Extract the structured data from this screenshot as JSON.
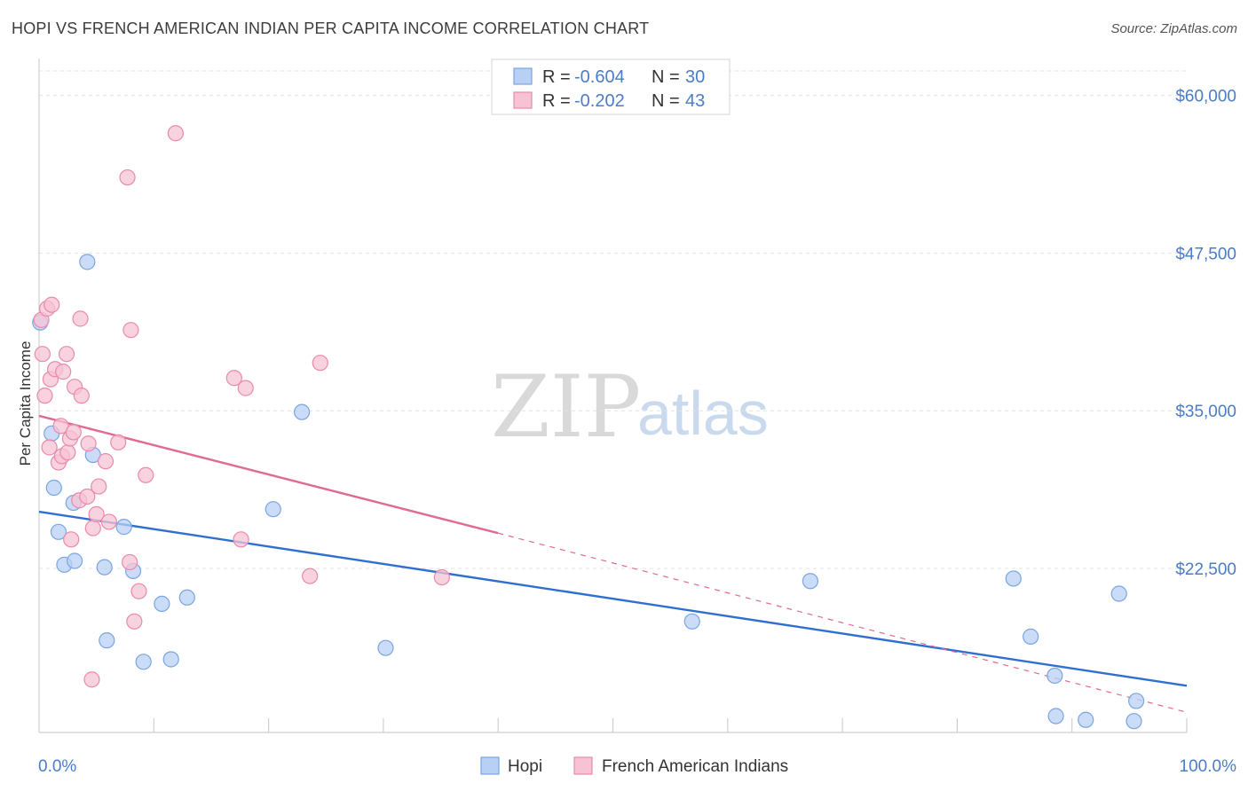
{
  "header": {
    "title": "HOPI VS FRENCH AMERICAN INDIAN PER CAPITA INCOME CORRELATION CHART",
    "source": "Source: ZipAtlas.com"
  },
  "watermark": {
    "part1": "ZIP",
    "part2": "atlas"
  },
  "colors": {
    "hopi_fill": "#b8d0f4",
    "hopi_stroke": "#7aa5df",
    "hopi_line": "#2f6fd0",
    "french_fill": "#f7c3d4",
    "french_stroke": "#e98aaa",
    "french_line": "#e06a93",
    "grid": "#e3e3e3",
    "axis_text": "#4a7cc7"
  },
  "legend": {
    "rows": [
      {
        "r_label": "R = ",
        "r_value": "-0.604",
        "n_label": "N = ",
        "n_value": "30"
      },
      {
        "r_label": "R = ",
        "r_value": "-0.202",
        "n_label": "N = ",
        "n_value": "43"
      }
    ]
  },
  "bottom_legend": {
    "hopi": "Hopi",
    "french": "French American Indians"
  },
  "chart_data": {
    "type": "scatter",
    "ylabel": "Per Capita Income",
    "xlim": [
      0,
      100
    ],
    "ylim": [
      9500,
      62500
    ],
    "y_ticks": [
      {
        "value": 22500,
        "label": "$22,500"
      },
      {
        "value": 35000,
        "label": "$35,000"
      },
      {
        "value": 47500,
        "label": "$47,500"
      },
      {
        "value": 60000,
        "label": "$60,000"
      }
    ],
    "x_tick_labels": {
      "min": "0.0%",
      "max": "100.0%"
    },
    "grid": "horizontal dashed",
    "series": [
      {
        "name": "Hopi",
        "points": [
          [
            0.1,
            42000
          ],
          [
            1.1,
            33200
          ],
          [
            1.3,
            28900
          ],
          [
            1.7,
            25400
          ],
          [
            2.2,
            22800
          ],
          [
            3.0,
            27700
          ],
          [
            3.1,
            23100
          ],
          [
            4.2,
            46800
          ],
          [
            4.7,
            31500
          ],
          [
            5.7,
            22600
          ],
          [
            5.9,
            16800
          ],
          [
            7.4,
            25800
          ],
          [
            8.2,
            22300
          ],
          [
            9.1,
            15100
          ],
          [
            10.7,
            19700
          ],
          [
            11.5,
            15300
          ],
          [
            12.9,
            20200
          ],
          [
            20.4,
            27200
          ],
          [
            22.9,
            34900
          ],
          [
            30.2,
            16200
          ],
          [
            56.9,
            18300
          ],
          [
            67.2,
            21500
          ],
          [
            84.9,
            21700
          ],
          [
            86.4,
            17100
          ],
          [
            88.5,
            14000
          ],
          [
            88.6,
            10800
          ],
          [
            91.2,
            10500
          ],
          [
            94.1,
            20500
          ],
          [
            95.4,
            10400
          ],
          [
            95.6,
            12000
          ]
        ],
        "trend": {
          "x1": 0,
          "y1": 27000,
          "x2": 100,
          "y2": 13200
        }
      },
      {
        "name": "French American Indians",
        "points": [
          [
            0.2,
            42200
          ],
          [
            0.3,
            39500
          ],
          [
            0.5,
            36200
          ],
          [
            0.7,
            43100
          ],
          [
            0.9,
            32100
          ],
          [
            1.0,
            37500
          ],
          [
            1.1,
            43400
          ],
          [
            1.4,
            38300
          ],
          [
            1.7,
            30900
          ],
          [
            1.9,
            33800
          ],
          [
            2.0,
            31400
          ],
          [
            2.1,
            38100
          ],
          [
            2.4,
            39500
          ],
          [
            2.5,
            31700
          ],
          [
            2.7,
            32800
          ],
          [
            2.8,
            24800
          ],
          [
            3.0,
            33300
          ],
          [
            3.1,
            36900
          ],
          [
            3.5,
            27900
          ],
          [
            3.6,
            42300
          ],
          [
            3.7,
            36200
          ],
          [
            4.2,
            28200
          ],
          [
            4.3,
            32400
          ],
          [
            4.6,
            13700
          ],
          [
            4.7,
            25700
          ],
          [
            5.0,
            26800
          ],
          [
            5.2,
            29000
          ],
          [
            5.8,
            31000
          ],
          [
            6.1,
            26200
          ],
          [
            6.9,
            32500
          ],
          [
            7.7,
            53500
          ],
          [
            7.9,
            23000
          ],
          [
            8.0,
            41400
          ],
          [
            8.3,
            18300
          ],
          [
            8.7,
            20700
          ],
          [
            9.3,
            29900
          ],
          [
            11.9,
            57000
          ],
          [
            17.0,
            37600
          ],
          [
            17.6,
            24800
          ],
          [
            18.0,
            36800
          ],
          [
            23.6,
            21900
          ],
          [
            24.5,
            38800
          ],
          [
            35.1,
            21800
          ]
        ],
        "trend": {
          "x1": 0,
          "y1": 34600,
          "x2": 40,
          "y2": 25300,
          "dash_to_x": 100,
          "dash_to_y": 11100
        }
      }
    ]
  }
}
